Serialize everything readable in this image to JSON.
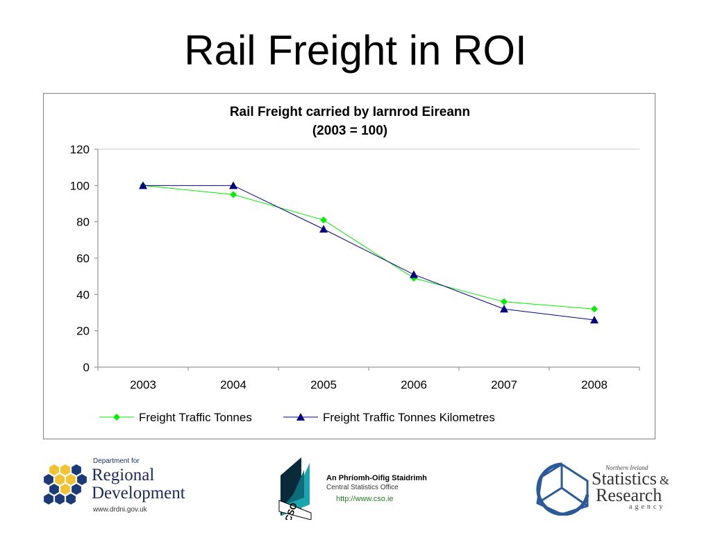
{
  "slide": {
    "title": "Rail Freight in ROI"
  },
  "chart_data": {
    "type": "line",
    "title": "Rail Freight carried by Iarnrod Eireann",
    "subtitle": "(2003 = 100)",
    "categories": [
      "2003",
      "2004",
      "2005",
      "2006",
      "2007",
      "2008"
    ],
    "series": [
      {
        "name": "Freight Traffic Tonnes",
        "values": [
          100,
          95,
          81,
          49,
          36,
          32
        ],
        "color": "#00ee00",
        "marker": "diamond"
      },
      {
        "name": "Freight Traffic Tonnes Kilometres",
        "values": [
          100,
          100,
          76,
          51,
          32,
          26
        ],
        "color": "#000080",
        "marker": "triangle"
      }
    ],
    "ylim": [
      0,
      120
    ],
    "yticks": [
      0,
      20,
      40,
      60,
      80,
      100,
      120
    ],
    "grid": false,
    "legend": "bottom"
  },
  "logos": {
    "drd": {
      "line1": "Department for",
      "line2": "Regional",
      "line3": "Development",
      "url": "www.drdni.gov.uk"
    },
    "cso": {
      "mark": "CSO",
      "name_irish": "An Phríomh-Oifig Staidrimh",
      "name_english": "Central Statistics Office",
      "url": "http://www.cso.ie"
    },
    "nisra": {
      "top": "Northern Ireland",
      "word1": "Statistics",
      "amp": "&",
      "word2": "Research",
      "word3": "agency"
    }
  }
}
